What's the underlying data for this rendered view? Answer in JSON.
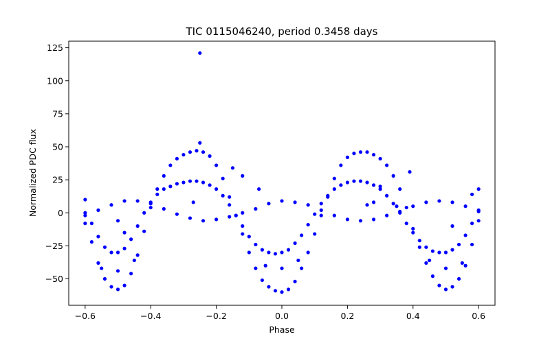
{
  "chart_data": {
    "type": "scatter",
    "title": "TIC 0115046240, period 0.3458 days",
    "xlabel": "Phase",
    "ylabel": "Normalized PDC flux",
    "xlim": [
      -0.65,
      0.65
    ],
    "ylim": [
      -70,
      130
    ],
    "xticks": [
      -0.6,
      -0.4,
      -0.2,
      0.0,
      0.2,
      0.4,
      0.6
    ],
    "xtick_labels": [
      "−0.6",
      "−0.4",
      "−0.2",
      "0.0",
      "0.2",
      "0.4",
      "0.6"
    ],
    "yticks": [
      -50,
      -25,
      0,
      25,
      50,
      75,
      100,
      125
    ],
    "ytick_labels": [
      "−50",
      "−25",
      "0",
      "25",
      "50",
      "75",
      "100",
      "125"
    ],
    "grid": false,
    "marker_color": "#0000ff",
    "series": [
      {
        "points": [
          [
            -0.6,
            -8
          ],
          [
            -0.58,
            -22
          ],
          [
            -0.56,
            -38
          ],
          [
            -0.54,
            -50
          ],
          [
            -0.52,
            -56
          ],
          [
            -0.5,
            -58
          ],
          [
            -0.48,
            -55
          ],
          [
            -0.46,
            -46
          ],
          [
            -0.44,
            -32
          ],
          [
            -0.42,
            -14
          ],
          [
            -0.4,
            4
          ],
          [
            -0.38,
            18
          ],
          [
            -0.36,
            28
          ],
          [
            -0.34,
            36
          ],
          [
            -0.32,
            41
          ],
          [
            -0.3,
            44
          ],
          [
            -0.28,
            46
          ],
          [
            -0.26,
            47
          ],
          [
            -0.24,
            46
          ],
          [
            -0.22,
            43
          ],
          [
            -0.2,
            36
          ],
          [
            -0.18,
            26
          ],
          [
            -0.16,
            12
          ],
          [
            -0.14,
            -2
          ],
          [
            -0.12,
            -16
          ],
          [
            -0.1,
            -30
          ],
          [
            -0.08,
            -42
          ],
          [
            -0.06,
            -51
          ],
          [
            -0.04,
            -56
          ],
          [
            -0.02,
            -59
          ],
          [
            0.0,
            -60
          ],
          [
            0.02,
            -58
          ],
          [
            0.04,
            -52
          ],
          [
            0.06,
            -42
          ],
          [
            0.08,
            -30
          ],
          [
            0.1,
            -16
          ],
          [
            0.12,
            -2
          ],
          [
            0.14,
            12
          ],
          [
            0.16,
            26
          ],
          [
            0.18,
            36
          ],
          [
            0.2,
            42
          ],
          [
            0.22,
            45
          ],
          [
            0.24,
            46
          ],
          [
            0.26,
            46
          ],
          [
            0.28,
            44
          ],
          [
            0.3,
            41
          ],
          [
            0.32,
            36
          ],
          [
            0.34,
            28
          ],
          [
            0.36,
            18
          ],
          [
            0.38,
            4
          ],
          [
            0.4,
            -12
          ],
          [
            0.42,
            -26
          ],
          [
            0.44,
            -38
          ],
          [
            0.46,
            -48
          ],
          [
            0.48,
            -55
          ],
          [
            0.5,
            -58
          ],
          [
            0.52,
            -56
          ],
          [
            0.54,
            -50
          ],
          [
            0.56,
            -40
          ],
          [
            0.58,
            -24
          ],
          [
            0.6,
            -6
          ],
          [
            -0.6,
            0
          ],
          [
            -0.58,
            -8
          ],
          [
            -0.56,
            -18
          ],
          [
            -0.54,
            -26
          ],
          [
            -0.52,
            -30
          ],
          [
            -0.5,
            -30
          ],
          [
            -0.48,
            -27
          ],
          [
            -0.46,
            -20
          ],
          [
            -0.44,
            -10
          ],
          [
            -0.42,
            0
          ],
          [
            -0.4,
            8
          ],
          [
            -0.38,
            14
          ],
          [
            -0.36,
            18
          ],
          [
            -0.34,
            20
          ],
          [
            -0.32,
            22
          ],
          [
            -0.3,
            23
          ],
          [
            -0.28,
            24
          ],
          [
            -0.26,
            24
          ],
          [
            -0.24,
            23
          ],
          [
            -0.22,
            21
          ],
          [
            -0.2,
            18
          ],
          [
            -0.18,
            13
          ],
          [
            -0.16,
            6
          ],
          [
            -0.14,
            -2
          ],
          [
            -0.12,
            -10
          ],
          [
            -0.1,
            -18
          ],
          [
            -0.08,
            -24
          ],
          [
            -0.06,
            -28
          ],
          [
            -0.04,
            -30
          ],
          [
            -0.02,
            -31
          ],
          [
            0.0,
            -30
          ],
          [
            0.02,
            -28
          ],
          [
            0.04,
            -23
          ],
          [
            0.06,
            -17
          ],
          [
            0.08,
            -9
          ],
          [
            0.1,
            -1
          ],
          [
            0.12,
            7
          ],
          [
            0.14,
            13
          ],
          [
            0.16,
            18
          ],
          [
            0.18,
            21
          ],
          [
            0.2,
            23
          ],
          [
            0.22,
            24
          ],
          [
            0.24,
            24
          ],
          [
            0.26,
            23
          ],
          [
            0.28,
            21
          ],
          [
            0.3,
            18
          ],
          [
            0.32,
            13
          ],
          [
            0.34,
            7
          ],
          [
            0.36,
            0
          ],
          [
            0.38,
            -8
          ],
          [
            0.4,
            -15
          ],
          [
            0.42,
            -21
          ],
          [
            0.44,
            -26
          ],
          [
            0.46,
            -29
          ],
          [
            0.48,
            -30
          ],
          [
            0.5,
            -30
          ],
          [
            0.52,
            -28
          ],
          [
            0.54,
            -24
          ],
          [
            0.56,
            -17
          ],
          [
            0.58,
            -8
          ],
          [
            0.6,
            2
          ],
          [
            -0.6,
            -2
          ],
          [
            -0.56,
            2
          ],
          [
            -0.52,
            6
          ],
          [
            -0.48,
            9
          ],
          [
            -0.44,
            9
          ],
          [
            -0.4,
            7
          ],
          [
            -0.36,
            3
          ],
          [
            -0.32,
            -1
          ],
          [
            -0.28,
            -4
          ],
          [
            -0.24,
            -6
          ],
          [
            -0.2,
            -5
          ],
          [
            -0.16,
            -3
          ],
          [
            -0.12,
            0
          ],
          [
            -0.08,
            3
          ],
          [
            -0.04,
            7
          ],
          [
            0.0,
            9
          ],
          [
            0.04,
            8
          ],
          [
            0.08,
            6
          ],
          [
            0.12,
            2
          ],
          [
            0.16,
            -2
          ],
          [
            0.2,
            -5
          ],
          [
            0.24,
            -6
          ],
          [
            0.28,
            -5
          ],
          [
            0.32,
            -2
          ],
          [
            0.36,
            1
          ],
          [
            0.4,
            5
          ],
          [
            0.44,
            8
          ],
          [
            0.48,
            9
          ],
          [
            0.52,
            8
          ],
          [
            0.56,
            5
          ],
          [
            0.6,
            1
          ],
          [
            -0.55,
            -42
          ],
          [
            -0.5,
            -44
          ],
          [
            -0.45,
            -36
          ],
          [
            -0.05,
            -40
          ],
          [
            0.0,
            -42
          ],
          [
            0.05,
            -36
          ],
          [
            0.45,
            -36
          ],
          [
            0.5,
            -42
          ],
          [
            0.55,
            -38
          ],
          [
            -0.25,
            121
          ],
          [
            -0.25,
            53
          ],
          [
            -0.5,
            -6
          ],
          [
            -0.6,
            10
          ],
          [
            0.6,
            18
          ],
          [
            0.58,
            14
          ],
          [
            0.39,
            31
          ],
          [
            -0.15,
            34
          ],
          [
            -0.12,
            28
          ],
          [
            -0.07,
            18
          ],
          [
            -0.27,
            8
          ],
          [
            0.3,
            20
          ],
          [
            0.28,
            8
          ],
          [
            0.26,
            6
          ],
          [
            0.35,
            5
          ],
          [
            0.52,
            -10
          ],
          [
            -0.48,
            -15
          ]
        ]
      }
    ]
  }
}
